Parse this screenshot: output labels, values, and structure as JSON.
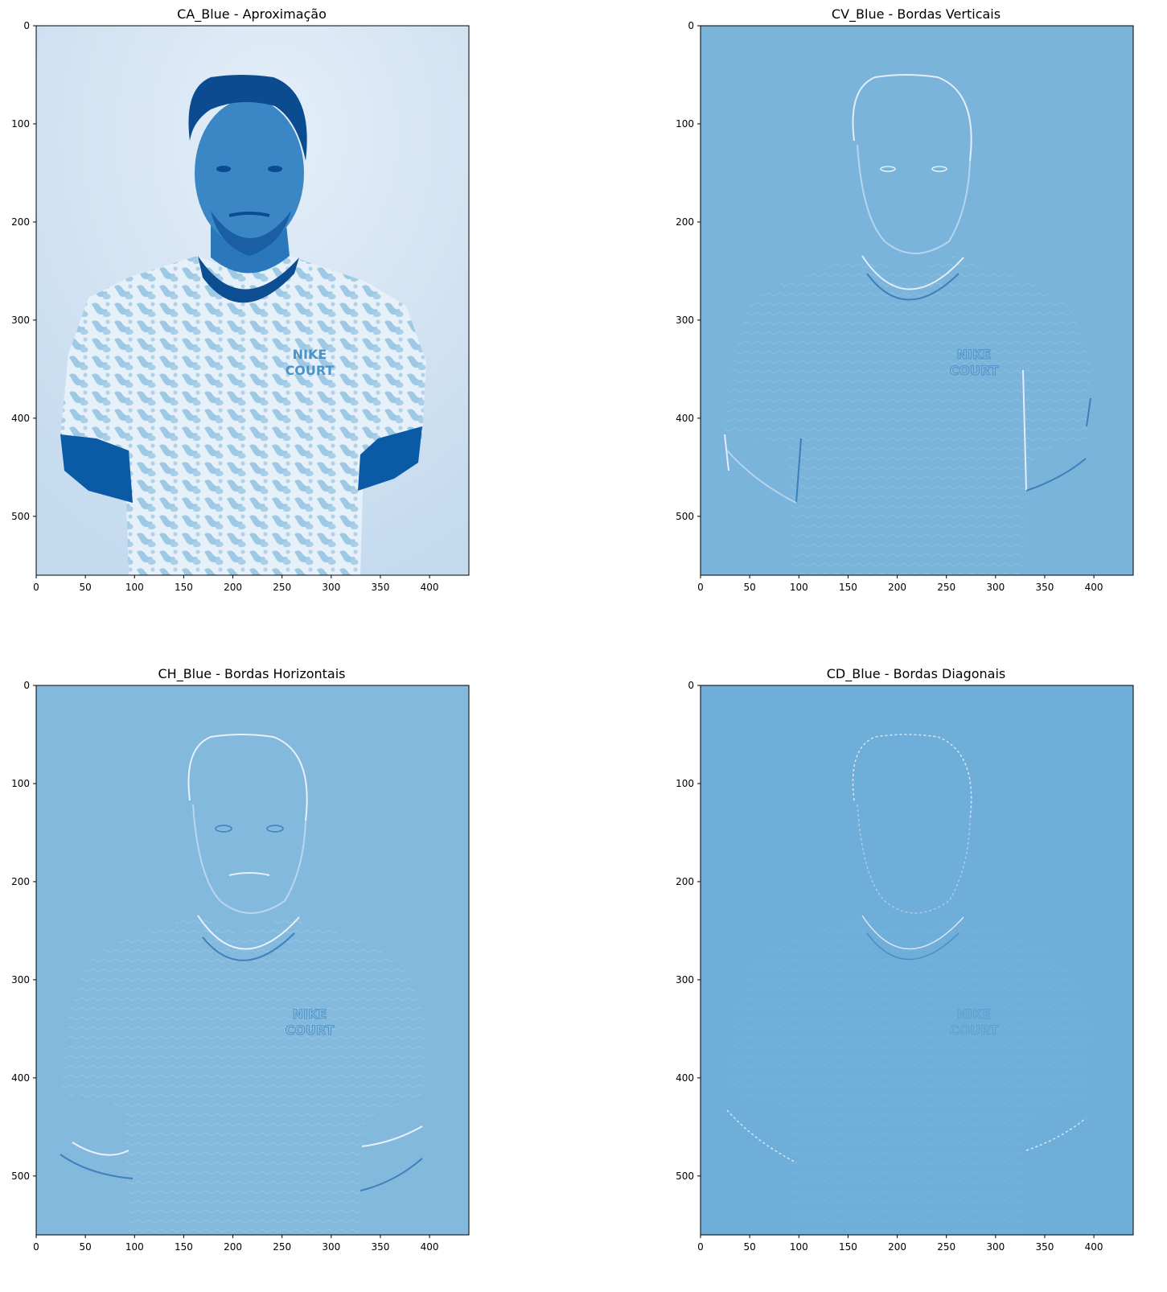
{
  "figure": {
    "layout": "2x2 grid of image subplots"
  },
  "chart_data": [
    {
      "type": "heatmap",
      "panel": "top-left",
      "title": "CA_Blue - Aproximação",
      "colormap": "Blues",
      "content": "approximation coefficients; portrait of a man in a patterned NIKE COURT t-shirt",
      "xlim": [
        0,
        440
      ],
      "ylim": [
        560,
        0
      ],
      "xticks": [
        0,
        50,
        100,
        150,
        200,
        250,
        300,
        350,
        400
      ],
      "yticks": [
        0,
        100,
        200,
        300,
        400,
        500
      ],
      "colors": {
        "background": "#d4e4f4",
        "subject_dark": "#0b5aa5",
        "subject_mid": "#6aaed6"
      }
    },
    {
      "type": "heatmap",
      "panel": "top-right",
      "title": "CV_Blue - Bordas Verticais",
      "colormap": "Blues",
      "content": "vertical detail coefficients (edge map)",
      "xlim": [
        0,
        440
      ],
      "ylim": [
        560,
        0
      ],
      "xticks": [
        0,
        50,
        100,
        150,
        200,
        250,
        300,
        350,
        400
      ],
      "yticks": [
        0,
        100,
        200,
        300,
        400,
        500
      ],
      "colors": {
        "background": "#7ab4da",
        "edge_light": "#e3eef8",
        "edge_dark": "#3d7fbd"
      }
    },
    {
      "type": "heatmap",
      "panel": "bottom-left",
      "title": "CH_Blue - Bordas Horizontais",
      "colormap": "Blues",
      "content": "horizontal detail coefficients (edge map)",
      "xlim": [
        0,
        440
      ],
      "ylim": [
        560,
        0
      ],
      "xticks": [
        0,
        50,
        100,
        150,
        200,
        250,
        300,
        350,
        400
      ],
      "yticks": [
        0,
        100,
        200,
        300,
        400,
        500
      ],
      "colors": {
        "background": "#82b9dc",
        "edge_light": "#e8f1fa",
        "edge_dark": "#3f80be"
      }
    },
    {
      "type": "heatmap",
      "panel": "bottom-right",
      "title": "CD_Blue - Bordas Diagonais",
      "colormap": "Blues",
      "content": "diagonal detail coefficients (edge map)",
      "xlim": [
        0,
        440
      ],
      "ylim": [
        560,
        0
      ],
      "xticks": [
        0,
        50,
        100,
        150,
        200,
        250,
        300,
        350,
        400
      ],
      "yticks": [
        0,
        100,
        200,
        300,
        400,
        500
      ],
      "colors": {
        "background": "#6eaed8",
        "edge_light": "#d6e7f5",
        "edge_dark": "#4a8cc6"
      }
    }
  ]
}
